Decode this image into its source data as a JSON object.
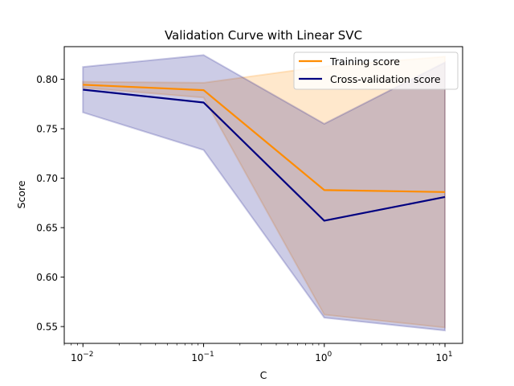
{
  "chart_data": {
    "type": "line",
    "title": "Validation Curve with Linear SVC",
    "xlabel": "C",
    "ylabel": "Score",
    "xscale": "log",
    "xlim": [
      0.007,
      14
    ],
    "ylim": [
      0.533,
      0.833
    ],
    "x": [
      0.01,
      0.1,
      1,
      10
    ],
    "xticks": [
      {
        "value": 0.01,
        "base": "10",
        "exp": "−2"
      },
      {
        "value": 0.1,
        "base": "10",
        "exp": "−1"
      },
      {
        "value": 1,
        "base": "10",
        "exp": "0"
      },
      {
        "value": 10,
        "base": "10",
        "exp": "1"
      }
    ],
    "yticks": [
      0.55,
      0.6,
      0.65,
      0.7,
      0.75,
      0.8
    ],
    "ytick_labels": [
      "0.55",
      "0.60",
      "0.65",
      "0.70",
      "0.75",
      "0.80"
    ],
    "series": [
      {
        "name": "Training score",
        "color": "#ff8c00",
        "values": [
          0.7945,
          0.789,
          0.688,
          0.686
        ],
        "band_upper": [
          0.7975,
          0.7965,
          0.813,
          0.823
        ],
        "band_lower": [
          0.7915,
          0.7815,
          0.562,
          0.549
        ]
      },
      {
        "name": "Cross-validation score",
        "color": "#000080",
        "values": [
          0.7895,
          0.7765,
          0.657,
          0.681
        ],
        "band_upper": [
          0.8125,
          0.8245,
          0.755,
          0.817
        ],
        "band_lower": [
          0.7665,
          0.7285,
          0.559,
          0.546
        ]
      }
    ],
    "grid": false,
    "legend_position": "top-right"
  }
}
